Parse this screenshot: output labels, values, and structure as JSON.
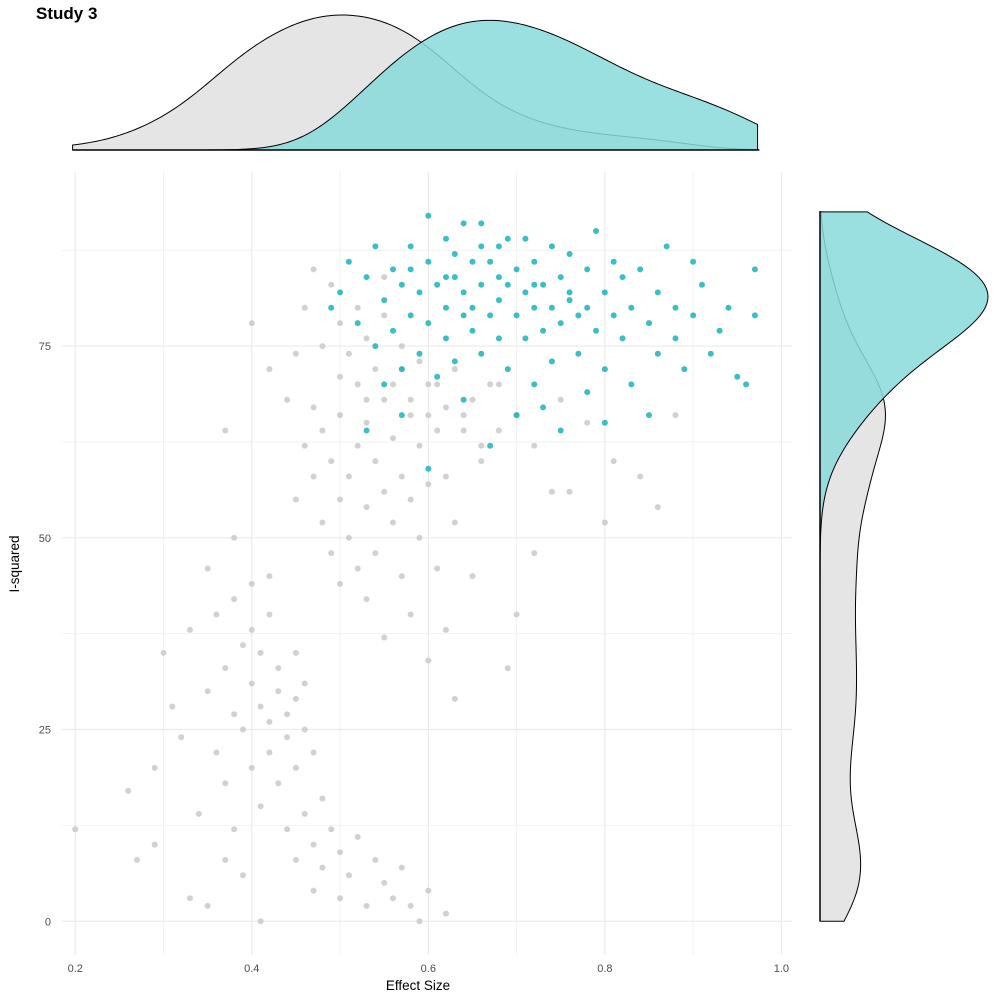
{
  "chart_data": {
    "type": "scatter",
    "title": "Study  3",
    "xlabel": "Effect Size",
    "ylabel": "I-squared",
    "xlim": [
      0.185,
      1.012
    ],
    "ylim": [
      -4.4,
      97.7
    ],
    "x_ticks": [
      "0.2",
      "0.4",
      "0.6",
      "0.8",
      "1.0"
    ],
    "x_tick_values": [
      0.2,
      0.4,
      0.6,
      0.8,
      1.0
    ],
    "y_ticks": [
      "0",
      "25",
      "50",
      "75"
    ],
    "y_tick_values": [
      0,
      25,
      50,
      75
    ],
    "grid": true,
    "marginals": "density (top: Effect Size, right: I-squared)",
    "legend": "none",
    "series": [
      {
        "color": "#cccccc",
        "density_fill": "#e5e5e5",
        "points": [
          [
            0.2,
            12
          ],
          [
            0.26,
            17
          ],
          [
            0.27,
            8
          ],
          [
            0.29,
            10
          ],
          [
            0.29,
            20
          ],
          [
            0.3,
            35
          ],
          [
            0.31,
            28
          ],
          [
            0.32,
            24
          ],
          [
            0.33,
            38
          ],
          [
            0.33,
            3
          ],
          [
            0.34,
            14
          ],
          [
            0.35,
            2
          ],
          [
            0.35,
            30
          ],
          [
            0.36,
            40
          ],
          [
            0.36,
            22
          ],
          [
            0.37,
            33
          ],
          [
            0.37,
            18
          ],
          [
            0.38,
            42
          ],
          [
            0.38,
            27
          ],
          [
            0.38,
            12
          ],
          [
            0.39,
            36
          ],
          [
            0.39,
            25
          ],
          [
            0.39,
            6
          ],
          [
            0.4,
            31
          ],
          [
            0.4,
            38
          ],
          [
            0.4,
            20
          ],
          [
            0.41,
            0
          ],
          [
            0.41,
            28
          ],
          [
            0.41,
            35
          ],
          [
            0.41,
            15
          ],
          [
            0.42,
            26
          ],
          [
            0.42,
            40
          ],
          [
            0.42,
            22
          ],
          [
            0.43,
            30
          ],
          [
            0.43,
            18
          ],
          [
            0.43,
            33
          ],
          [
            0.44,
            27
          ],
          [
            0.44,
            12
          ],
          [
            0.44,
            24
          ],
          [
            0.45,
            29
          ],
          [
            0.45,
            35
          ],
          [
            0.45,
            8
          ],
          [
            0.45,
            20
          ],
          [
            0.46,
            25
          ],
          [
            0.46,
            14
          ],
          [
            0.46,
            31
          ],
          [
            0.47,
            10
          ],
          [
            0.47,
            22
          ],
          [
            0.47,
            4
          ],
          [
            0.48,
            7
          ],
          [
            0.48,
            16
          ],
          [
            0.49,
            12
          ],
          [
            0.5,
            9
          ],
          [
            0.5,
            3
          ],
          [
            0.51,
            6
          ],
          [
            0.52,
            11
          ],
          [
            0.53,
            2
          ],
          [
            0.54,
            8
          ],
          [
            0.55,
            5
          ],
          [
            0.56,
            3
          ],
          [
            0.57,
            7
          ],
          [
            0.58,
            2
          ],
          [
            0.59,
            0
          ],
          [
            0.6,
            4
          ],
          [
            0.62,
            1
          ],
          [
            0.35,
            46
          ],
          [
            0.38,
            50
          ],
          [
            0.4,
            44
          ],
          [
            0.37,
            8
          ],
          [
            0.42,
            45
          ],
          [
            0.45,
            55
          ],
          [
            0.46,
            62
          ],
          [
            0.47,
            58
          ],
          [
            0.47,
            67
          ],
          [
            0.48,
            52
          ],
          [
            0.48,
            64
          ],
          [
            0.49,
            48
          ],
          [
            0.49,
            60
          ],
          [
            0.5,
            55
          ],
          [
            0.5,
            66
          ],
          [
            0.5,
            44
          ],
          [
            0.51,
            58
          ],
          [
            0.51,
            50
          ],
          [
            0.52,
            62
          ],
          [
            0.52,
            46
          ],
          [
            0.52,
            70
          ],
          [
            0.53,
            54
          ],
          [
            0.53,
            42
          ],
          [
            0.53,
            65
          ],
          [
            0.54,
            60
          ],
          [
            0.54,
            48
          ],
          [
            0.55,
            56
          ],
          [
            0.55,
            37
          ],
          [
            0.55,
            68
          ],
          [
            0.56,
            52
          ],
          [
            0.56,
            63
          ],
          [
            0.57,
            45
          ],
          [
            0.57,
            58
          ],
          [
            0.57,
            72
          ],
          [
            0.58,
            40
          ],
          [
            0.58,
            55
          ],
          [
            0.58,
            66
          ],
          [
            0.59,
            50
          ],
          [
            0.59,
            62
          ],
          [
            0.6,
            34
          ],
          [
            0.6,
            57
          ],
          [
            0.6,
            70
          ],
          [
            0.61,
            46
          ],
          [
            0.61,
            64
          ],
          [
            0.62,
            38
          ],
          [
            0.62,
            58
          ],
          [
            0.63,
            29
          ],
          [
            0.63,
            52
          ],
          [
            0.64,
            66
          ],
          [
            0.65,
            45
          ],
          [
            0.66,
            60
          ],
          [
            0.68,
            70
          ],
          [
            0.69,
            33
          ],
          [
            0.7,
            40
          ],
          [
            0.72,
            48
          ],
          [
            0.74,
            56
          ],
          [
            0.76,
            56
          ],
          [
            0.8,
            52
          ],
          [
            0.86,
            54
          ],
          [
            0.88,
            66
          ],
          [
            0.84,
            58
          ],
          [
            0.81,
            60
          ],
          [
            0.44,
            68
          ],
          [
            0.42,
            72
          ],
          [
            0.4,
            78
          ],
          [
            0.37,
            64
          ],
          [
            0.45,
            74
          ],
          [
            0.46,
            80
          ],
          [
            0.48,
            75
          ],
          [
            0.49,
            83
          ],
          [
            0.5,
            71
          ],
          [
            0.5,
            78
          ],
          [
            0.51,
            74
          ],
          [
            0.52,
            80
          ],
          [
            0.53,
            68
          ],
          [
            0.53,
            76
          ],
          [
            0.54,
            72
          ],
          [
            0.55,
            79
          ],
          [
            0.56,
            70
          ],
          [
            0.57,
            75
          ],
          [
            0.58,
            68
          ],
          [
            0.59,
            73
          ],
          [
            0.6,
            66
          ],
          [
            0.61,
            70
          ],
          [
            0.62,
            67
          ],
          [
            0.63,
            72
          ],
          [
            0.64,
            64
          ],
          [
            0.65,
            68
          ],
          [
            0.66,
            62
          ],
          [
            0.67,
            70
          ],
          [
            0.68,
            64
          ],
          [
            0.7,
            66
          ],
          [
            0.72,
            62
          ],
          [
            0.75,
            68
          ],
          [
            0.78,
            65
          ],
          [
            0.55,
            84
          ],
          [
            0.47,
            85
          ]
        ]
      },
      {
        "color": "#1ab3b8",
        "density_fill": "#8adadc",
        "points": [
          [
            0.49,
            80
          ],
          [
            0.5,
            82
          ],
          [
            0.51,
            86
          ],
          [
            0.52,
            78
          ],
          [
            0.53,
            84
          ],
          [
            0.54,
            75
          ],
          [
            0.54,
            88
          ],
          [
            0.55,
            81
          ],
          [
            0.55,
            70
          ],
          [
            0.56,
            85
          ],
          [
            0.56,
            77
          ],
          [
            0.57,
            83
          ],
          [
            0.57,
            66
          ],
          [
            0.58,
            79
          ],
          [
            0.58,
            88
          ],
          [
            0.59,
            74
          ],
          [
            0.59,
            82
          ],
          [
            0.6,
            86
          ],
          [
            0.6,
            59
          ],
          [
            0.6,
            78
          ],
          [
            0.61,
            83
          ],
          [
            0.61,
            71
          ],
          [
            0.62,
            89
          ],
          [
            0.62,
            80
          ],
          [
            0.62,
            76
          ],
          [
            0.63,
            84
          ],
          [
            0.63,
            73
          ],
          [
            0.63,
            87
          ],
          [
            0.64,
            79
          ],
          [
            0.64,
            82
          ],
          [
            0.64,
            68
          ],
          [
            0.65,
            86
          ],
          [
            0.65,
            77
          ],
          [
            0.65,
            80
          ],
          [
            0.66,
            91
          ],
          [
            0.66,
            83
          ],
          [
            0.66,
            74
          ],
          [
            0.67,
            79
          ],
          [
            0.67,
            86
          ],
          [
            0.67,
            62
          ],
          [
            0.68,
            81
          ],
          [
            0.68,
            76
          ],
          [
            0.68,
            88
          ],
          [
            0.69,
            83
          ],
          [
            0.69,
            72
          ],
          [
            0.7,
            85
          ],
          [
            0.7,
            79
          ],
          [
            0.7,
            66
          ],
          [
            0.71,
            82
          ],
          [
            0.71,
            89
          ],
          [
            0.71,
            76
          ],
          [
            0.72,
            80
          ],
          [
            0.72,
            86
          ],
          [
            0.72,
            70
          ],
          [
            0.73,
            83
          ],
          [
            0.73,
            77
          ],
          [
            0.74,
            88
          ],
          [
            0.74,
            80
          ],
          [
            0.74,
            73
          ],
          [
            0.75,
            84
          ],
          [
            0.75,
            78
          ],
          [
            0.75,
            64
          ],
          [
            0.76,
            82
          ],
          [
            0.76,
            87
          ],
          [
            0.77,
            79
          ],
          [
            0.77,
            74
          ],
          [
            0.78,
            85
          ],
          [
            0.78,
            80
          ],
          [
            0.79,
            77
          ],
          [
            0.79,
            90
          ],
          [
            0.8,
            82
          ],
          [
            0.8,
            72
          ],
          [
            0.81,
            86
          ],
          [
            0.81,
            79
          ],
          [
            0.82,
            76
          ],
          [
            0.82,
            84
          ],
          [
            0.83,
            80
          ],
          [
            0.83,
            70
          ],
          [
            0.84,
            85
          ],
          [
            0.85,
            78
          ],
          [
            0.86,
            82
          ],
          [
            0.86,
            74
          ],
          [
            0.87,
            88
          ],
          [
            0.88,
            80
          ],
          [
            0.88,
            76
          ],
          [
            0.89,
            72
          ],
          [
            0.9,
            86
          ],
          [
            0.9,
            79
          ],
          [
            0.91,
            83
          ],
          [
            0.92,
            74
          ],
          [
            0.93,
            77
          ],
          [
            0.94,
            80
          ],
          [
            0.95,
            71
          ],
          [
            0.96,
            70
          ],
          [
            0.97,
            85
          ],
          [
            0.97,
            79
          ],
          [
            0.53,
            64
          ],
          [
            0.57,
            72
          ],
          [
            0.6,
            92
          ],
          [
            0.64,
            91
          ],
          [
            0.66,
            88
          ],
          [
            0.69,
            89
          ],
          [
            0.73,
            67
          ],
          [
            0.78,
            69
          ],
          [
            0.8,
            65
          ],
          [
            0.85,
            66
          ],
          [
            0.58,
            85
          ],
          [
            0.62,
            84
          ],
          [
            0.68,
            84
          ],
          [
            0.72,
            83
          ],
          [
            0.76,
            81
          ]
        ]
      }
    ]
  }
}
